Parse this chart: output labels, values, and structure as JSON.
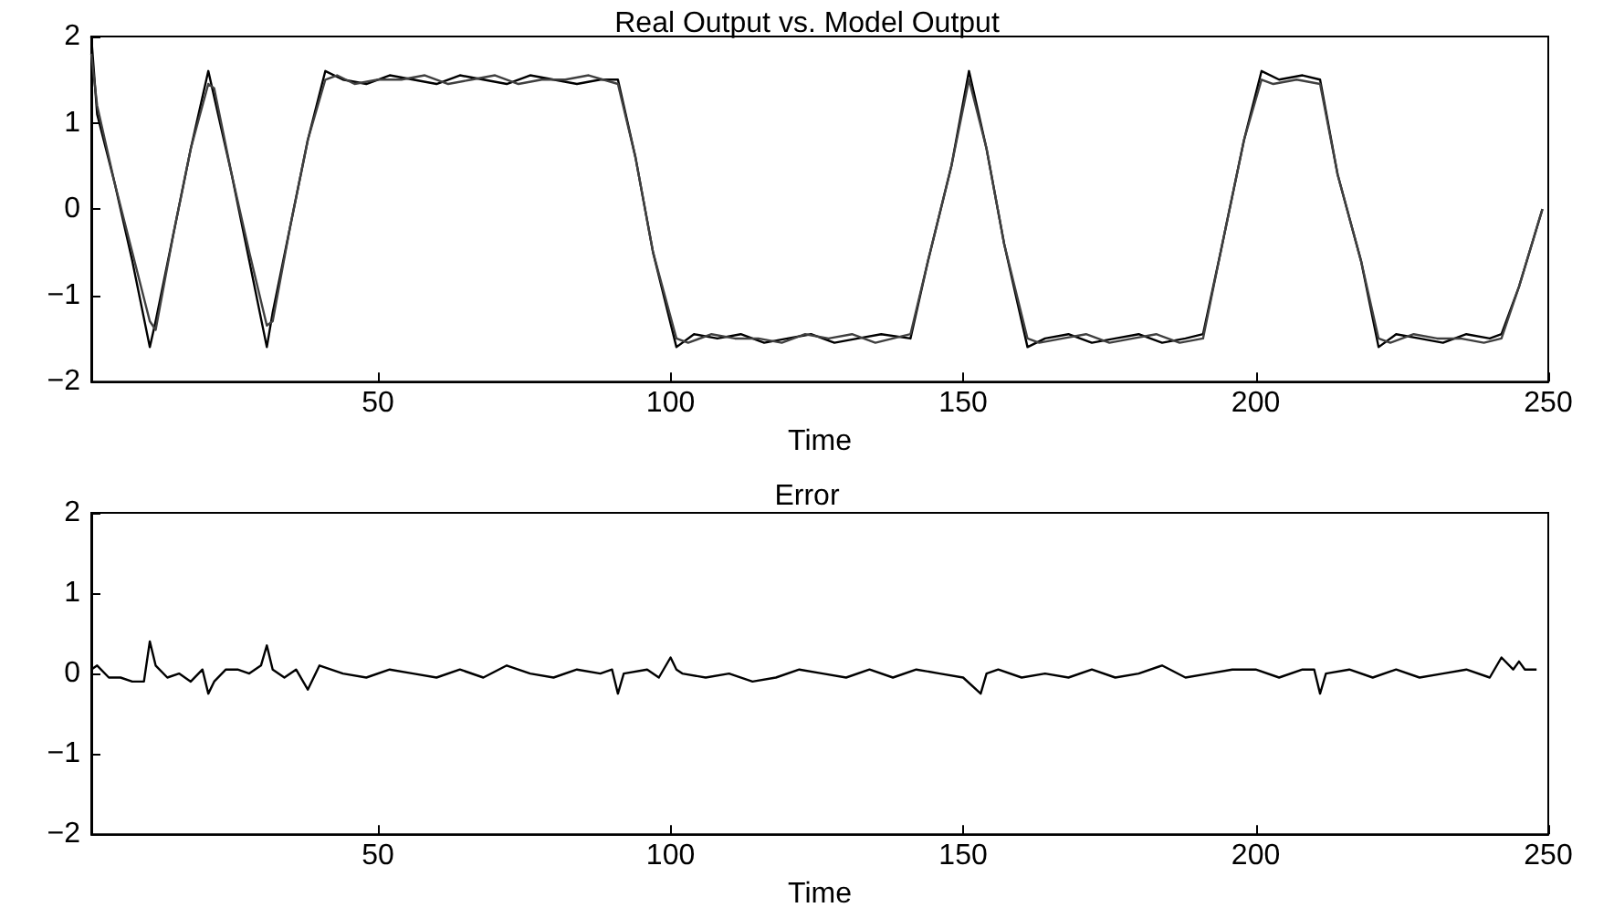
{
  "chart_data": [
    {
      "type": "line",
      "title": "Real Output vs. Model Output",
      "xlabel": "Time",
      "xlim": [
        1,
        250
      ],
      "xticks": [
        50,
        100,
        150,
        200,
        250
      ],
      "ylim": [
        -2,
        2
      ],
      "yticks": [
        -2,
        -1,
        0,
        1,
        2
      ],
      "grid": false,
      "series": [
        {
          "color": "#000000",
          "x": [
            1,
            2,
            5,
            8,
            11,
            12,
            15,
            18,
            21,
            22,
            25,
            28,
            31,
            32,
            35,
            38,
            41,
            44,
            48,
            52,
            56,
            60,
            64,
            68,
            72,
            76,
            80,
            84,
            88,
            91,
            94,
            97,
            101,
            104,
            108,
            112,
            116,
            120,
            124,
            128,
            132,
            136,
            141,
            144,
            148,
            151,
            154,
            157,
            161,
            164,
            168,
            172,
            176,
            180,
            184,
            188,
            191,
            194,
            198,
            201,
            204,
            208,
            211,
            214,
            218,
            221,
            224,
            228,
            232,
            236,
            240,
            242,
            245,
            249
          ],
          "values": [
            2,
            1.1,
            0.3,
            -0.6,
            -1.6,
            -1.3,
            -0.3,
            0.7,
            1.6,
            1.3,
            0.4,
            -0.6,
            -1.6,
            -1.2,
            -0.2,
            0.8,
            1.6,
            1.5,
            1.45,
            1.55,
            1.5,
            1.45,
            1.55,
            1.5,
            1.45,
            1.55,
            1.5,
            1.45,
            1.5,
            1.5,
            0.6,
            -0.5,
            -1.6,
            -1.45,
            -1.5,
            -1.45,
            -1.55,
            -1.5,
            -1.45,
            -1.55,
            -1.5,
            -1.45,
            -1.5,
            -0.6,
            0.5,
            1.6,
            0.7,
            -0.4,
            -1.6,
            -1.5,
            -1.45,
            -1.55,
            -1.5,
            -1.45,
            -1.55,
            -1.5,
            -1.45,
            -0.5,
            0.8,
            1.6,
            1.5,
            1.55,
            1.5,
            0.4,
            -0.6,
            -1.6,
            -1.45,
            -1.5,
            -1.55,
            -1.45,
            -1.5,
            -1.45,
            -0.9,
            0
          ]
        },
        {
          "color": "#404040",
          "x": [
            1,
            2,
            5,
            8,
            11,
            12,
            15,
            18,
            21,
            22,
            25,
            28,
            31,
            32,
            35,
            38,
            41,
            43,
            46,
            50,
            54,
            58,
            62,
            66,
            70,
            74,
            78,
            82,
            86,
            91,
            94,
            97,
            101,
            103,
            107,
            111,
            115,
            119,
            123,
            127,
            131,
            135,
            141,
            144,
            148,
            151,
            154,
            157,
            161,
            163,
            167,
            171,
            175,
            179,
            183,
            187,
            191,
            194,
            198,
            201,
            203,
            207,
            211,
            214,
            218,
            221,
            223,
            227,
            231,
            235,
            239,
            242,
            245,
            249
          ],
          "values": [
            1.8,
            1.2,
            0.3,
            -0.5,
            -1.3,
            -1.4,
            -0.3,
            0.7,
            1.45,
            1.4,
            0.4,
            -0.5,
            -1.35,
            -1.3,
            -0.2,
            0.8,
            1.5,
            1.55,
            1.45,
            1.5,
            1.5,
            1.55,
            1.45,
            1.5,
            1.55,
            1.45,
            1.5,
            1.5,
            1.55,
            1.45,
            0.6,
            -0.5,
            -1.5,
            -1.55,
            -1.45,
            -1.5,
            -1.5,
            -1.55,
            -1.45,
            -1.5,
            -1.45,
            -1.55,
            -1.45,
            -0.6,
            0.5,
            1.5,
            0.7,
            -0.4,
            -1.5,
            -1.55,
            -1.5,
            -1.45,
            -1.55,
            -1.5,
            -1.45,
            -1.55,
            -1.5,
            -0.5,
            0.8,
            1.5,
            1.45,
            1.5,
            1.45,
            0.4,
            -0.6,
            -1.5,
            -1.55,
            -1.45,
            -1.5,
            -1.5,
            -1.55,
            -1.5,
            -0.9,
            0
          ]
        }
      ]
    },
    {
      "type": "line",
      "title": "Error",
      "xlabel": "Time",
      "xlim": [
        1,
        250
      ],
      "xticks": [
        50,
        100,
        150,
        200,
        250
      ],
      "ylim": [
        -2,
        2
      ],
      "yticks": [
        -2,
        -1,
        0,
        1,
        2
      ],
      "grid": false,
      "series": [
        {
          "color": "#000000",
          "x": [
            1,
            2,
            4,
            6,
            8,
            10,
            11,
            12,
            14,
            16,
            18,
            20,
            21,
            22,
            24,
            26,
            28,
            30,
            31,
            32,
            34,
            36,
            38,
            40,
            44,
            48,
            52,
            56,
            60,
            64,
            68,
            72,
            76,
            80,
            84,
            88,
            90,
            91,
            92,
            96,
            98,
            100,
            101,
            102,
            106,
            110,
            114,
            118,
            122,
            126,
            130,
            134,
            138,
            142,
            146,
            150,
            153,
            154,
            156,
            160,
            164,
            168,
            172,
            176,
            180,
            184,
            188,
            192,
            196,
            200,
            204,
            208,
            210,
            211,
            212,
            216,
            220,
            224,
            228,
            232,
            236,
            240,
            242,
            244,
            245,
            246,
            248
          ],
          "values": [
            0.05,
            0.1,
            -0.05,
            -0.05,
            -0.1,
            -0.1,
            0.4,
            0.1,
            -0.05,
            0,
            -0.1,
            0.05,
            -0.25,
            -0.1,
            0.05,
            0.05,
            0,
            0.1,
            0.35,
            0.05,
            -0.05,
            0.05,
            -0.2,
            0.1,
            0,
            -0.05,
            0.05,
            0,
            -0.05,
            0.05,
            -0.05,
            0.1,
            0,
            -0.05,
            0.05,
            0,
            0.05,
            -0.25,
            0,
            0.05,
            -0.05,
            0.2,
            0.05,
            0,
            -0.05,
            0,
            -0.1,
            -0.05,
            0.05,
            0,
            -0.05,
            0.05,
            -0.05,
            0.05,
            0,
            -0.05,
            -0.25,
            0,
            0.05,
            -0.05,
            0,
            -0.05,
            0.05,
            -0.05,
            0,
            0.1,
            -0.05,
            0,
            0.05,
            0.05,
            -0.05,
            0.05,
            0.05,
            -0.25,
            0,
            0.05,
            -0.05,
            0.05,
            -0.05,
            0,
            0.05,
            -0.05,
            0.2,
            0.05,
            0.15,
            0.05,
            0.05
          ]
        }
      ]
    }
  ]
}
